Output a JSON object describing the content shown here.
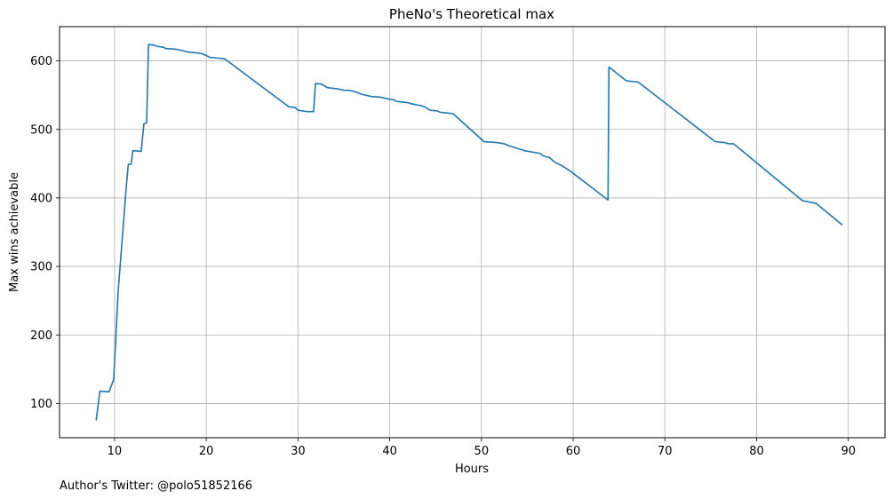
{
  "chart_data": {
    "type": "line",
    "title": "PheNo's Theoretical max",
    "xlabel": "Hours",
    "ylabel": "Max wins achievable",
    "xlim": [
      4,
      94
    ],
    "ylim": [
      50,
      650
    ],
    "xticks": [
      10,
      20,
      30,
      40,
      50,
      60,
      70,
      80,
      90
    ],
    "yticks": [
      100,
      200,
      300,
      400,
      500,
      600
    ],
    "grid": true,
    "series": [
      {
        "color": "#1f77b4",
        "points": [
          [
            8.0,
            76
          ],
          [
            8.4,
            118
          ],
          [
            9.4,
            117
          ],
          [
            9.9,
            135
          ],
          [
            10.4,
            265
          ],
          [
            11.3,
            420
          ],
          [
            11.5,
            449
          ],
          [
            11.8,
            449
          ],
          [
            12.0,
            469
          ],
          [
            12.9,
            468
          ],
          [
            13.2,
            508
          ],
          [
            13.5,
            510
          ],
          [
            13.7,
            624
          ],
          [
            14.3,
            623
          ],
          [
            14.7,
            621
          ],
          [
            15.3,
            620
          ],
          [
            15.6,
            618
          ],
          [
            16.7,
            617
          ],
          [
            17.4,
            615
          ],
          [
            18.0,
            613
          ],
          [
            19.4,
            611
          ],
          [
            20.0,
            608
          ],
          [
            20.4,
            605
          ],
          [
            21.4,
            604
          ],
          [
            22.0,
            603
          ],
          [
            29.0,
            533
          ],
          [
            29.7,
            532
          ],
          [
            30.0,
            528
          ],
          [
            31.0,
            526
          ],
          [
            31.7,
            526
          ],
          [
            31.9,
            567
          ],
          [
            32.6,
            566
          ],
          [
            33.2,
            561
          ],
          [
            34.4,
            559
          ],
          [
            35.0,
            557
          ],
          [
            35.6,
            557
          ],
          [
            36.2,
            555
          ],
          [
            37.0,
            551
          ],
          [
            38.0,
            548
          ],
          [
            39.0,
            547
          ],
          [
            40.0,
            544
          ],
          [
            40.5,
            543
          ],
          [
            40.7,
            541
          ],
          [
            42.0,
            539
          ],
          [
            42.5,
            537
          ],
          [
            43.3,
            535
          ],
          [
            43.8,
            533
          ],
          [
            44.4,
            528
          ],
          [
            45.2,
            527
          ],
          [
            45.5,
            525
          ],
          [
            46.2,
            524
          ],
          [
            46.9,
            523
          ],
          [
            50.3,
            482
          ],
          [
            51.6,
            481
          ],
          [
            52.5,
            479
          ],
          [
            53.0,
            476
          ],
          [
            54.0,
            472
          ],
          [
            54.7,
            469
          ],
          [
            55.5,
            467
          ],
          [
            56.4,
            465
          ],
          [
            56.8,
            461
          ],
          [
            57.4,
            459
          ],
          [
            58.0,
            452
          ],
          [
            58.8,
            447
          ],
          [
            59.7,
            439
          ],
          [
            63.8,
            397
          ],
          [
            63.9,
            591
          ],
          [
            65.8,
            571
          ],
          [
            67.1,
            569
          ],
          [
            75.5,
            482
          ],
          [
            76.4,
            481
          ],
          [
            77.0,
            479
          ],
          [
            77.5,
            479
          ],
          [
            85.0,
            396
          ],
          [
            86.5,
            392
          ],
          [
            89.3,
            361
          ]
        ]
      }
    ]
  },
  "footnote": "Author's Twitter: @polo51852166"
}
